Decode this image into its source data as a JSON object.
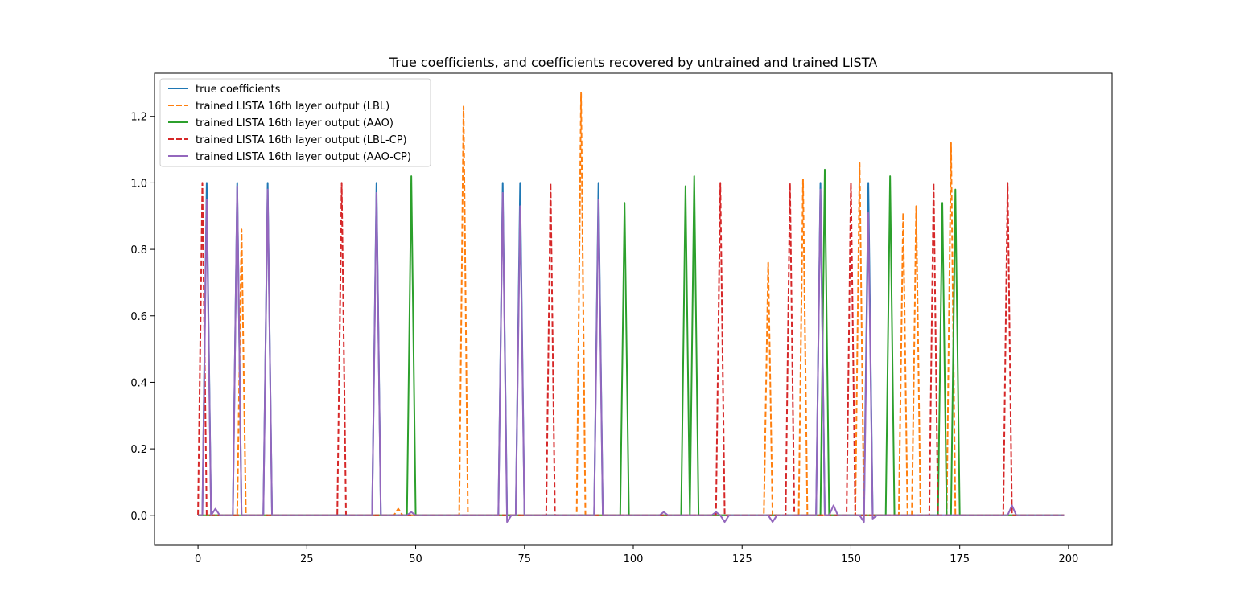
{
  "chart_data": {
    "type": "line",
    "title": "True coefficients, and coefficients recovered by untrained and trained LISTA",
    "xlabel": "",
    "ylabel": "",
    "xlim": [
      -10,
      210
    ],
    "ylim": [
      -0.09,
      1.33
    ],
    "xticks": [
      0,
      25,
      50,
      75,
      100,
      125,
      150,
      175,
      200
    ],
    "yticks": [
      0.0,
      0.2,
      0.4,
      0.6,
      0.8,
      1.0,
      1.2
    ],
    "xtick_labels": [
      "0",
      "25",
      "50",
      "75",
      "100",
      "125",
      "150",
      "175",
      "200"
    ],
    "ytick_labels": [
      "0.0",
      "0.2",
      "0.4",
      "0.6",
      "0.8",
      "1.0",
      "1.2"
    ],
    "legend_position": "upper-left",
    "grid": false,
    "n_points": 200,
    "series": [
      {
        "name": "true coefficients",
        "color": "#1f77b4",
        "dash": "solid",
        "spikes": [
          [
            2,
            1.0
          ],
          [
            9,
            1.0
          ],
          [
            16,
            1.0
          ],
          [
            41,
            1.0
          ],
          [
            70,
            1.0
          ],
          [
            74,
            1.0
          ],
          [
            92,
            1.0
          ],
          [
            143,
            1.0
          ],
          [
            154,
            1.0
          ]
        ]
      },
      {
        "name": "trained LISTA 16th layer output (LBL)",
        "color": "#ff7f0e",
        "dash": "dashed",
        "spikes": [
          [
            10,
            0.86
          ],
          [
            46,
            0.02
          ],
          [
            61,
            1.23
          ],
          [
            88,
            1.27
          ],
          [
            131,
            0.76
          ],
          [
            139,
            1.01
          ],
          [
            152,
            1.06
          ],
          [
            162,
            0.91
          ],
          [
            165,
            0.93
          ],
          [
            173,
            1.12
          ]
        ]
      },
      {
        "name": "trained LISTA 16th layer output (AAO)",
        "color": "#2ca02c",
        "dash": "solid",
        "spikes": [
          [
            49,
            1.02
          ],
          [
            98,
            0.94
          ],
          [
            112,
            0.99
          ],
          [
            114,
            1.02
          ],
          [
            144,
            1.04
          ],
          [
            159,
            1.02
          ],
          [
            171,
            0.94
          ],
          [
            174,
            0.98
          ]
        ]
      },
      {
        "name": "trained LISTA 16th layer output (LBL-CP)",
        "color": "#d62728",
        "dash": "dashed",
        "spikes": [
          [
            1,
            1.0
          ],
          [
            33,
            1.0
          ],
          [
            81,
            1.0
          ],
          [
            120,
            1.0
          ],
          [
            136,
            1.0
          ],
          [
            150,
            1.0
          ],
          [
            169,
            1.0
          ],
          [
            186,
            1.0
          ]
        ]
      },
      {
        "name": "trained LISTA 16th layer output (AAO-CP)",
        "color": "#9467bd",
        "dash": "solid",
        "spikes": [
          [
            2,
            0.95
          ],
          [
            4,
            0.02
          ],
          [
            9,
            0.99
          ],
          [
            16,
            0.98
          ],
          [
            41,
            0.97
          ],
          [
            49,
            0.01
          ],
          [
            70,
            0.97
          ],
          [
            71,
            -0.02
          ],
          [
            74,
            0.93
          ],
          [
            92,
            0.95
          ],
          [
            107,
            0.01
          ],
          [
            119,
            0.01
          ],
          [
            121,
            -0.02
          ],
          [
            132,
            -0.02
          ],
          [
            143,
            0.98
          ],
          [
            146,
            0.03
          ],
          [
            153,
            -0.02
          ],
          [
            154,
            0.91
          ],
          [
            155,
            -0.01
          ],
          [
            187,
            0.03
          ]
        ]
      }
    ]
  }
}
